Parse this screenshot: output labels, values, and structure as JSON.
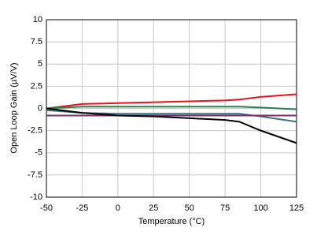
{
  "chart_data": {
    "type": "line",
    "x_label": "Temperature (°C)",
    "y_label": "Open Loop Gain (µV/V)",
    "x": [
      -50,
      -25,
      0,
      25,
      50,
      75,
      85,
      100,
      125
    ],
    "series": [
      {
        "color": "#e8141b",
        "values": [
          0,
          0.5,
          0.6,
          0.7,
          0.8,
          0.9,
          1.0,
          1.3,
          1.6
        ]
      },
      {
        "color": "#2e7d4f",
        "values": [
          0,
          0.2,
          0.2,
          0.2,
          0.2,
          0.2,
          0.2,
          0.1,
          -0.1
        ]
      },
      {
        "color": "#3f6f7f",
        "values": [
          -0.2,
          -0.5,
          -0.6,
          -0.6,
          -0.6,
          -0.6,
          -0.6,
          -0.9,
          -1.5
        ]
      },
      {
        "color": "#7b2c6e",
        "values": [
          -0.8,
          -0.8,
          -0.8,
          -0.8,
          -0.8,
          -0.8,
          -0.8,
          -0.8,
          -0.8
        ]
      },
      {
        "color": "#000000",
        "values": [
          0,
          -0.5,
          -0.8,
          -0.9,
          -1.1,
          -1.3,
          -1.5,
          -2.5,
          -3.9
        ]
      }
    ],
    "xlim": [
      -50,
      125
    ],
    "xticks": [
      -50,
      -25,
      0,
      25,
      50,
      75,
      100,
      125
    ],
    "ylim": [
      -10,
      10
    ],
    "yticks": [
      -10,
      -7.5,
      -5,
      -2.5,
      0,
      2.5,
      5,
      7.5,
      10
    ],
    "grid": true
  }
}
